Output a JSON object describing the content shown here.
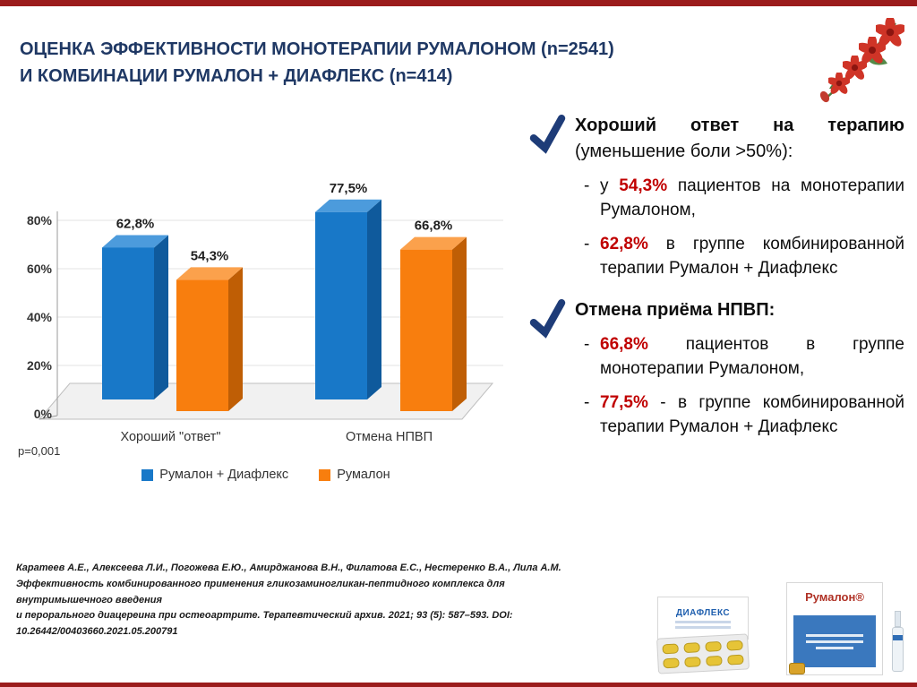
{
  "title": {
    "line1": "ОЦЕНКА ЭФФЕКТИВНОСТИ МОНОТЕРАПИИ РУМАЛОНОМ (n=2541)",
    "line2": "И КОМБИНАЦИИ РУМАЛОН + ДИАФЛЕКС (n=414)"
  },
  "chart_data": {
    "type": "bar",
    "categories": [
      "Хороший \"ответ\"",
      "Отмена НПВП"
    ],
    "series": [
      {
        "name": "Румалон + Диафлекс",
        "color": "#1878C8",
        "color_dark": "#0F5A9C",
        "color_light": "#4C9BDC",
        "values": [
          62.8,
          77.5
        ],
        "labels": [
          "62,8%",
          "77,5%"
        ]
      },
      {
        "name": "Румалон",
        "color": "#F87E0E",
        "color_dark": "#BF5E05",
        "color_light": "#FBA14C",
        "values": [
          54.3,
          66.8
        ],
        "labels": [
          "54,3%",
          "66,8%"
        ]
      }
    ],
    "ylim": [
      0,
      80
    ],
    "yticks": [
      "0%",
      "20%",
      "40%",
      "60%",
      "80%"
    ],
    "p_value": "p=0,001",
    "legend_position": "bottom",
    "grid": true
  },
  "right_panel": {
    "section1": {
      "heading_bold": "Хороший ответ на терапию",
      "heading_normal": " (уменьшение боли >50%):",
      "bullets": [
        {
          "dash": "-",
          "pre": "у ",
          "value": "54,3%",
          "post": " пациентов на монотерапии Румалоном,"
        },
        {
          "dash": "-",
          "pre": "",
          "value": "62,8%",
          "post": " в группе комбинированной терапии Румалон + Диафлекс"
        }
      ]
    },
    "section2": {
      "heading_bold": "Отмена приёма НПВП:",
      "heading_normal": "",
      "bullets": [
        {
          "dash": "-",
          "pre": "",
          "value": "66,8%",
          "post": " пациентов в группе монотерапии Румалоном,"
        },
        {
          "dash": "-",
          "pre": "",
          "value": "77,5%",
          "post": " - в группе комбинированной терапии Румалон + Диафлекс"
        }
      ]
    }
  },
  "citation": {
    "line1": "Каратеев А.Е., Алексеева Л.И., Погожева Е.Ю., Амирджанова В.Н., Филатова Е.С., Нестеренко В.А., Лила А.М.",
    "line2": "Эффективность комбинированного применения гликозаминогликан-пептидного комплекса для внутримышечного введения",
    "line3": "и перорального диацереина при остеоартрите. Терапевтический архив. 2021; 93 (5): 587–593. DOI: 10.26442/00403660.2021.05.200791"
  },
  "products": {
    "product1_label": "ДИАФЛЕКС",
    "product2_label": "Румалон®"
  },
  "colors": {
    "accent_red": "#C00000",
    "title_blue": "#1F3864",
    "border_red": "#9B1C1C",
    "check_blue": "#1E3C78"
  }
}
